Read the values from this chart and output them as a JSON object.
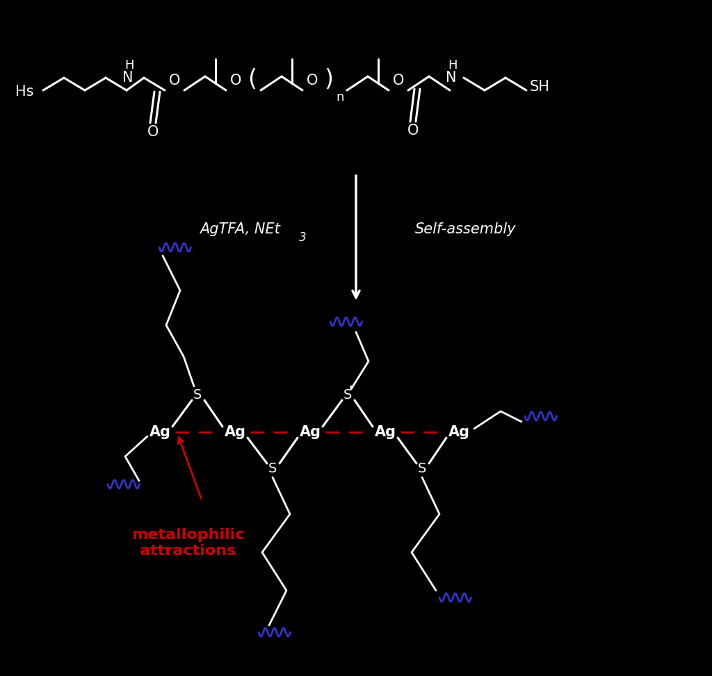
{
  "bg_color": "#000000",
  "fg_color": "#ffffff",
  "blue_color": "#3333cc",
  "red_color": "#cc0000",
  "figsize": [
    10.24,
    9.73
  ],
  "dpi": 100,
  "ag_label": "Ag",
  "s_label": "S",
  "agtfa_label": "AgTFA, NEt",
  "agtfa_sub": "3",
  "selfassembly_label": "Self-assembly",
  "metallophilic_label": "metallophilic\nattractions",
  "hs_left": "Hs",
  "sh_right": "SH",
  "n_label": "N",
  "h_label": "H",
  "o_label": "O",
  "n_label2": "n"
}
